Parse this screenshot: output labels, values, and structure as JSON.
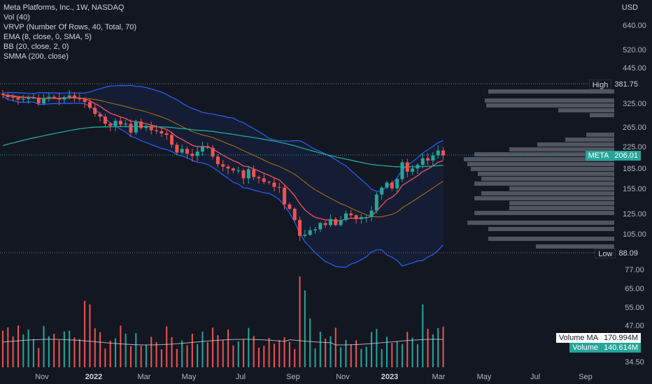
{
  "legend": {
    "title": "Meta Platforms, Inc., 1W, NASDAQ",
    "vol": "Vol (40)",
    "vrvp": "VRVP (Number Of Rows, 40, Total, 70)",
    "ema": "EMA (8, close, 0, SMA, 5)",
    "bb": "BB (20, close, 2, 0)",
    "smma": "SMMA (200, close)"
  },
  "currency": "USD",
  "tags": {
    "high_label": "High",
    "high_value": "381.75",
    "symbol_label": "META",
    "symbol_value": "206.01",
    "low_label": "Low",
    "low_value": "88.09",
    "volma_label": "Volume MA",
    "volma_value": "170.994M",
    "volume_label": "Volume",
    "volume_value": "140.614M"
  },
  "colors": {
    "background": "#131722",
    "up": "#26a69a",
    "down": "#ef5350",
    "bb": "#2962ff",
    "ema": "#f7525f",
    "smma": "#22ab94",
    "volma": "#d1d4dc",
    "profile": "#5d606b"
  },
  "chart_data": {
    "type": "candlestick",
    "price_axis_labels": [
      "640.00",
      "520.00",
      "445.00",
      "381.75",
      "325.00",
      "265.00",
      "225.00",
      "206.01",
      "185.00",
      "155.00",
      "125.00",
      "105.00",
      "88.09",
      "77.00",
      "65.00",
      "55.00",
      "47.00",
      "34.50"
    ],
    "time_axis_labels": [
      "Nov",
      "2022",
      "Mar",
      "May",
      "Jul",
      "Sep",
      "Nov",
      "2023",
      "Mar",
      "May",
      "Jul",
      "Sep"
    ],
    "scale": "log",
    "high": 381.75,
    "low": 88.09,
    "last": 206.01,
    "closes": [
      347,
      340,
      338,
      333,
      335,
      338,
      338,
      322,
      336,
      341,
      338,
      333,
      340,
      345,
      337,
      334,
      326,
      310,
      294,
      287,
      270,
      265,
      277,
      268,
      270,
      250,
      275,
      260,
      265,
      255,
      253,
      248,
      245,
      225,
      210,
      217,
      208,
      204,
      212,
      222,
      219,
      203,
      190,
      186,
      183,
      180,
      180,
      168,
      182,
      170,
      168,
      163,
      162,
      156,
      155,
      134,
      129,
      117,
      102,
      103,
      107,
      108,
      114,
      112,
      118,
      112,
      117,
      124,
      122,
      118,
      120,
      120,
      127,
      146,
      155,
      162,
      154,
      167,
      193,
      178,
      183,
      189,
      200,
      196,
      205,
      214,
      205
    ],
    "volume_ma": 170.994,
    "last_volume": 140.614,
    "volume_unit": "M"
  }
}
